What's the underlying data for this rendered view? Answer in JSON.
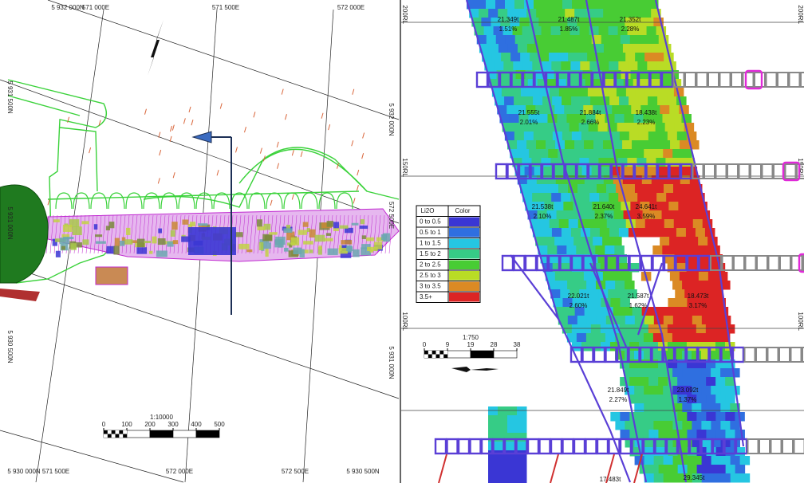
{
  "left_map": {
    "grid_labels": {
      "top": [
        "5 932 000N",
        "571 000E",
        "571 500E",
        "572 000E"
      ],
      "right": [
        "5 932 000N",
        "572 500E",
        "5 931 000N"
      ],
      "left": [
        "5 931 500N",
        "5 931 000N",
        "5 930 500N"
      ],
      "bottom": [
        "5 930 000N",
        "571 500E",
        "572 000E",
        "572 500E",
        "5 930 500N"
      ]
    },
    "scale": {
      "ratio": "1:10000",
      "ticks": [
        "0",
        "100",
        "200",
        "300",
        "400",
        "500"
      ]
    }
  },
  "section": {
    "rl_labels": [
      "200RL",
      "150RL",
      "100RL"
    ],
    "blocks": [
      {
        "tonnage": "21.349t",
        "grade": "1.51%"
      },
      {
        "tonnage": "21.487t",
        "grade": "1.85%"
      },
      {
        "tonnage": "21.352t",
        "grade": "2.28%"
      },
      {
        "tonnage": "21.555t",
        "grade": "2.01%"
      },
      {
        "tonnage": "21.884t",
        "grade": "2.66%"
      },
      {
        "tonnage": "18.438t",
        "grade": "2.23%"
      },
      {
        "tonnage": "21.538t",
        "grade": "2.10%"
      },
      {
        "tonnage": "21.640t",
        "grade": "2.37%"
      },
      {
        "tonnage": "24.641t",
        "grade": "3.59%"
      },
      {
        "tonnage": "22.021t",
        "grade": "2.60%"
      },
      {
        "tonnage": "21.587t",
        "grade": "1.62%"
      },
      {
        "tonnage": "18.473t",
        "grade": "3.17%"
      },
      {
        "tonnage": "21.849t",
        "grade": "2.27%"
      },
      {
        "tonnage": "23.092t",
        "grade": "1.37%"
      },
      {
        "tonnage": "17.483t"
      },
      {
        "tonnage": "29.345t"
      }
    ],
    "legend": {
      "headers": [
        "Li2O",
        "Color"
      ],
      "rows": [
        {
          "label": "0 to 0.5",
          "color": "#3a36d4"
        },
        {
          "label": "0.5 to 1",
          "color": "#2f6fe0"
        },
        {
          "label": "1 to 1.5",
          "color": "#25c6e2"
        },
        {
          "label": "1.5 to 2",
          "color": "#36cc86"
        },
        {
          "label": "2 to 2.5",
          "color": "#48cc34"
        },
        {
          "label": "2.5 to 3",
          "color": "#b9dc25"
        },
        {
          "label": "3 to 3.5",
          "color": "#db8a24"
        },
        {
          "label": "3.5+",
          "color": "#dc2424"
        }
      ]
    },
    "scale": {
      "ratio": "1:750",
      "ticks": [
        "0",
        "9",
        "19",
        "28",
        "38"
      ]
    }
  }
}
